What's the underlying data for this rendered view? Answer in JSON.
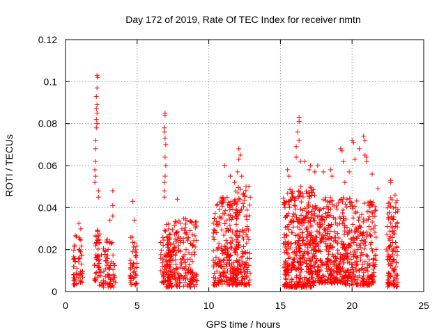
{
  "chart_data": {
    "type": "scatter",
    "title": "Day 172 of 2019, Rate Of TEC Index for receiver nmtn",
    "xlabel": "GPS time / hours",
    "ylabel": "ROTI / TECUs",
    "xlim": [
      0,
      25
    ],
    "ylim": [
      0,
      0.12
    ],
    "xticks": [
      "0",
      "5",
      "10",
      "15",
      "20",
      "25"
    ],
    "yticks": [
      "0",
      "0.02",
      "0.04",
      "0.06",
      "0.08",
      "0.1",
      "0.12"
    ],
    "xtick_values": [
      0,
      5,
      10,
      15,
      20,
      25
    ],
    "ytick_values": [
      0,
      0.02,
      0.04,
      0.06,
      0.08,
      0.1,
      0.12
    ],
    "grid": true,
    "marker": "plus",
    "series": [
      {
        "name": "ROTI",
        "color": "#ff0000",
        "clusters": [
          {
            "x_range": [
              0.55,
              0.8
            ],
            "y_range": [
              0.003,
              0.03
            ],
            "count": 30
          },
          {
            "x_range": [
              0.9,
              1.2
            ],
            "y_range": [
              0.004,
              0.035
            ],
            "count": 30
          },
          {
            "x_range": [
              2.0,
              2.4
            ],
            "y_range": [
              0.003,
              0.03
            ],
            "count": 45
          },
          {
            "x_range": [
              2.45,
              3.5
            ],
            "y_range": [
              0.002,
              0.025
            ],
            "count": 70
          },
          {
            "x_range": [
              4.5,
              5.0
            ],
            "y_range": [
              0.003,
              0.028
            ],
            "count": 45
          },
          {
            "x_range": [
              6.6,
              7.4
            ],
            "y_range": [
              0.004,
              0.03
            ],
            "count": 60
          },
          {
            "x_range": [
              7.0,
              9.2
            ],
            "y_range": [
              0.002,
              0.035
            ],
            "count": 230
          },
          {
            "x_range": [
              10.3,
              12.0
            ],
            "y_range": [
              0.003,
              0.045
            ],
            "count": 240
          },
          {
            "x_range": [
              11.8,
              12.9
            ],
            "y_range": [
              0.003,
              0.05
            ],
            "count": 140
          },
          {
            "x_range": [
              15.2,
              17.4
            ],
            "y_range": [
              0.002,
              0.05
            ],
            "count": 420
          },
          {
            "x_range": [
              17.4,
              19.5
            ],
            "y_range": [
              0.004,
              0.045
            ],
            "count": 320
          },
          {
            "x_range": [
              19.5,
              21.7
            ],
            "y_range": [
              0.003,
              0.045
            ],
            "count": 280
          },
          {
            "x_range": [
              22.4,
              23.2
            ],
            "y_range": [
              0.002,
              0.045
            ],
            "count": 120
          }
        ],
        "points": [
          [
            2.2,
            0.103
          ],
          [
            2.25,
            0.102
          ],
          [
            2.2,
            0.097
          ],
          [
            2.15,
            0.093
          ],
          [
            2.2,
            0.089
          ],
          [
            2.15,
            0.087
          ],
          [
            2.2,
            0.085
          ],
          [
            2.15,
            0.082
          ],
          [
            2.2,
            0.08
          ],
          [
            2.15,
            0.078
          ],
          [
            2.1,
            0.072
          ],
          [
            2.1,
            0.068
          ],
          [
            2.1,
            0.062
          ],
          [
            2.05,
            0.058
          ],
          [
            2.1,
            0.055
          ],
          [
            2.05,
            0.052
          ],
          [
            2.3,
            0.048
          ],
          [
            2.3,
            0.045
          ],
          [
            3.3,
            0.048
          ],
          [
            3.3,
            0.041
          ],
          [
            3.3,
            0.036
          ],
          [
            3.1,
            0.034
          ],
          [
            4.7,
            0.043
          ],
          [
            4.8,
            0.034
          ],
          [
            6.95,
            0.085
          ],
          [
            6.95,
            0.084
          ],
          [
            6.9,
            0.078
          ],
          [
            6.9,
            0.076
          ],
          [
            6.95,
            0.073
          ],
          [
            7.0,
            0.07
          ],
          [
            6.95,
            0.064
          ],
          [
            7.0,
            0.06
          ],
          [
            6.95,
            0.055
          ],
          [
            6.9,
            0.052
          ],
          [
            6.9,
            0.048
          ],
          [
            6.9,
            0.045
          ],
          [
            7.8,
            0.044
          ],
          [
            11.1,
            0.06
          ],
          [
            11.5,
            0.055
          ],
          [
            11.8,
            0.052
          ],
          [
            12.1,
            0.068
          ],
          [
            12.2,
            0.065
          ],
          [
            12.1,
            0.063
          ],
          [
            12.0,
            0.057
          ],
          [
            12.3,
            0.055
          ],
          [
            12.6,
            0.05
          ],
          [
            12.5,
            0.046
          ],
          [
            12.8,
            0.05
          ],
          [
            15.5,
            0.058
          ],
          [
            15.6,
            0.055
          ],
          [
            16.1,
            0.064
          ],
          [
            16.3,
            0.083
          ],
          [
            16.3,
            0.081
          ],
          [
            16.2,
            0.076
          ],
          [
            16.3,
            0.072
          ],
          [
            16.1,
            0.069
          ],
          [
            16.4,
            0.062
          ],
          [
            16.7,
            0.062
          ],
          [
            17.0,
            0.058
          ],
          [
            17.1,
            0.06
          ],
          [
            17.4,
            0.057
          ],
          [
            17.6,
            0.06
          ],
          [
            18.0,
            0.057
          ],
          [
            18.5,
            0.058
          ],
          [
            18.6,
            0.055
          ],
          [
            19.2,
            0.068
          ],
          [
            19.3,
            0.067
          ],
          [
            19.4,
            0.062
          ],
          [
            19.5,
            0.052
          ],
          [
            19.8,
            0.057
          ],
          [
            20.0,
            0.072
          ],
          [
            20.1,
            0.071
          ],
          [
            20.5,
            0.068
          ],
          [
            20.8,
            0.074
          ],
          [
            20.9,
            0.072
          ],
          [
            20.9,
            0.065
          ],
          [
            21.0,
            0.064
          ],
          [
            21.0,
            0.062
          ],
          [
            20.2,
            0.063
          ],
          [
            21.4,
            0.056
          ],
          [
            22.7,
            0.053
          ],
          [
            22.7,
            0.052
          ],
          [
            23.0,
            0.046
          ],
          [
            22.5,
            0.037
          ],
          [
            21.8,
            0.049
          ]
        ]
      }
    ]
  }
}
